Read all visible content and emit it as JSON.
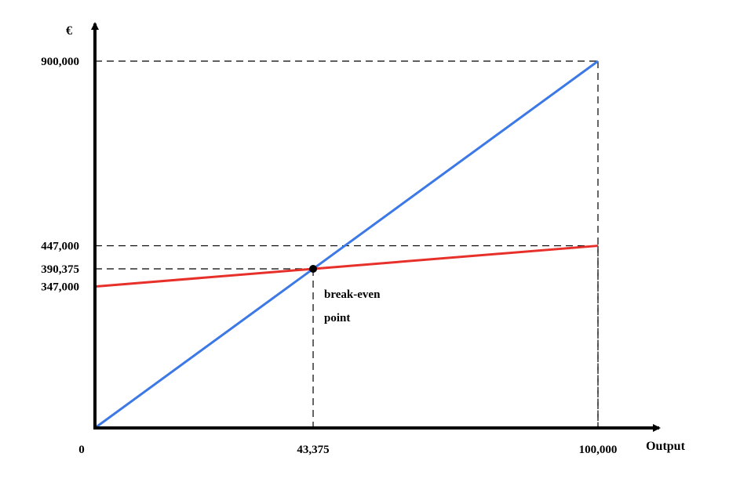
{
  "chart_data": {
    "type": "line",
    "title": "",
    "xlabel": "Output",
    "ylabel": "€",
    "xlim": [
      0,
      100000
    ],
    "ylim": [
      0,
      900000
    ],
    "grid": false,
    "x_ticks": [
      {
        "value": 0,
        "label": "0"
      },
      {
        "value": 43375,
        "label": "43,375"
      },
      {
        "value": 100000,
        "label": "100,000"
      }
    ],
    "y_ticks": [
      {
        "value": 900000,
        "label": "900,000"
      },
      {
        "value": 447000,
        "label": "447,000"
      },
      {
        "value": 390375,
        "label": "390,375"
      },
      {
        "value": 347000,
        "label": "347,000"
      }
    ],
    "series": [
      {
        "color": "#3c78e6",
        "x": [
          0,
          100000
        ],
        "y": [
          0,
          900000
        ]
      },
      {
        "color": "#e8302a",
        "x": [
          0,
          100000
        ],
        "y": [
          347000,
          447000
        ]
      }
    ],
    "guides": [
      {
        "x": 43375,
        "y": 390375
      },
      {
        "x": 100000,
        "y": 900000
      },
      {
        "x": 100000,
        "y": 447000
      }
    ],
    "annotations": [
      {
        "lines": [
          "break-even",
          "point"
        ],
        "x": 43375,
        "y": 390375
      }
    ]
  }
}
